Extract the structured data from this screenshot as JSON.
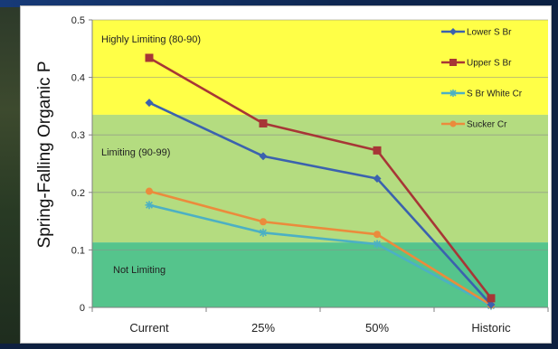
{
  "chart_data": {
    "type": "line",
    "title": "",
    "xlabel": "",
    "ylabel": "Spring-Falling Organic P",
    "ylim": [
      0,
      0.5
    ],
    "yticks": [
      "0",
      "0.1",
      "0.2",
      "0.3",
      "0.4",
      "0.5"
    ],
    "categories": [
      "Current",
      "25%",
      "50%",
      "Historic"
    ],
    "grid": true,
    "legend_position": "top-right",
    "zones": [
      {
        "label": "Highly Limiting (80-90)",
        "range": [
          0.335,
          0.5
        ],
        "color": "#ffff47"
      },
      {
        "label": "Limiting (90-99)",
        "range": [
          0.113,
          0.335
        ],
        "color": "#b4dc80"
      },
      {
        "label": "Not Limiting",
        "range": [
          0,
          0.113
        ],
        "color": "#55c48c"
      }
    ],
    "series": [
      {
        "name": "Lower S Br",
        "color": "#3b62ae",
        "marker": "diamond",
        "values": [
          0.356,
          0.263,
          0.224,
          0.005
        ]
      },
      {
        "name": "Upper S Br",
        "color": "#a73636",
        "marker": "square",
        "values": [
          0.434,
          0.32,
          0.273,
          0.016
        ]
      },
      {
        "name": "S Br White Cr",
        "color": "#4cb0c4",
        "marker": "star",
        "values": [
          0.178,
          0.13,
          0.11,
          0.003
        ]
      },
      {
        "name": "Sucker Cr",
        "color": "#eb8b3c",
        "marker": "circle",
        "values": [
          0.202,
          0.149,
          0.127,
          0.004
        ]
      }
    ]
  }
}
